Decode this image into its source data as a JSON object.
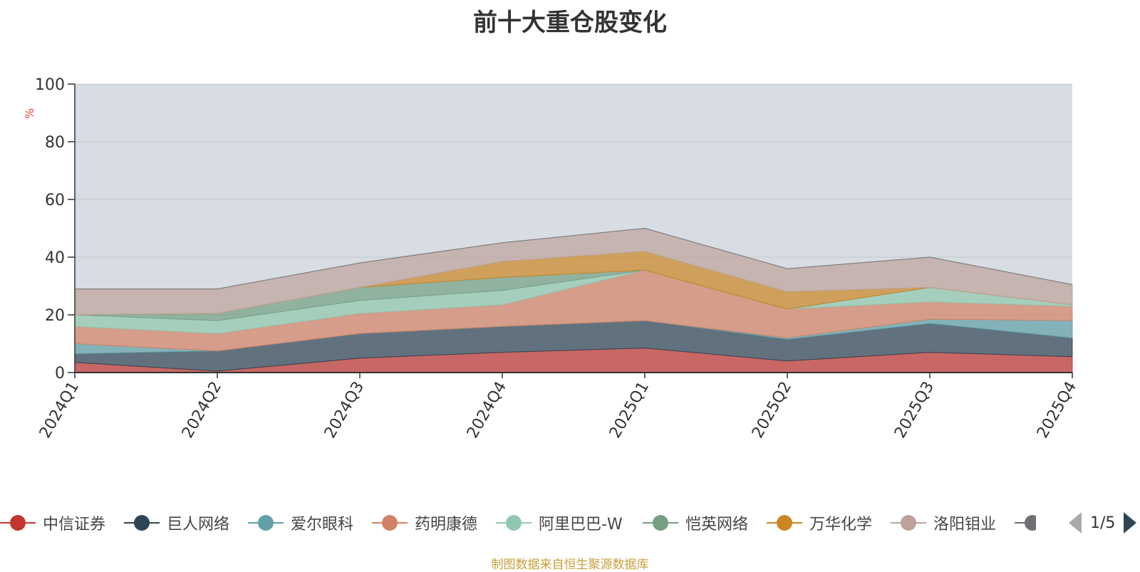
{
  "chart_data": {
    "type": "area",
    "title": "前十大重仓股变化",
    "ylabel": "%",
    "ylim": [
      0,
      100
    ],
    "yticks": [
      0,
      20,
      40,
      60,
      80,
      100
    ],
    "categories": [
      "2024Q1",
      "2024Q2",
      "2024Q3",
      "2024Q4",
      "2025Q1",
      "2025Q2",
      "2025Q3",
      "2025Q4"
    ],
    "grid": true,
    "series": [
      {
        "name": "中信证券",
        "color": "#c23531",
        "values": [
          3.5,
          0.5,
          5.0,
          7.0,
          8.5,
          4.0,
          7.0,
          5.5
        ]
      },
      {
        "name": "巨人网络",
        "color": "#2f4554",
        "values": [
          3.0,
          7.0,
          8.5,
          9.0,
          9.5,
          7.5,
          10.0,
          6.5
        ]
      },
      {
        "name": "爱尔眼科",
        "color": "#61a0a8",
        "values": [
          3.5,
          0.0,
          0.0,
          0.0,
          0.0,
          0.5,
          1.5,
          6.0
        ]
      },
      {
        "name": "药明康德",
        "color": "#d48265",
        "values": [
          6.0,
          6.0,
          7.0,
          7.5,
          17.5,
          10.0,
          6.0,
          5.0
        ]
      },
      {
        "name": "阿里巴巴-W",
        "color": "#91c7ae",
        "values": [
          4.0,
          4.5,
          4.5,
          5.0,
          0.0,
          0.0,
          5.0,
          0.5
        ]
      },
      {
        "name": "恺英网络",
        "color": "#749f83",
        "values": [
          0.0,
          2.5,
          4.5,
          4.5,
          0.0,
          0.0,
          0.0,
          0.0
        ]
      },
      {
        "name": "万华化学",
        "color": "#ca8622",
        "values": [
          0.0,
          0.0,
          0.0,
          5.5,
          6.5,
          6.0,
          0.0,
          0.0
        ]
      },
      {
        "name": "洛阳钼业",
        "color": "#bda29a",
        "values": [
          9.0,
          8.5,
          8.5,
          6.5,
          8.0,
          8.0,
          10.5,
          7.0
        ]
      },
      {
        "name": "",
        "color": "#6e7074",
        "values": [
          0.0,
          0.0,
          0.0,
          0.0,
          0.0,
          0.0,
          0.0,
          0.0
        ]
      }
    ]
  },
  "legend": {
    "items": [
      {
        "label": "中信证券",
        "color": "#c23531"
      },
      {
        "label": "巨人网络",
        "color": "#2f4554"
      },
      {
        "label": "爱尔眼科",
        "color": "#61a0a8"
      },
      {
        "label": "药明康德",
        "color": "#d48265"
      },
      {
        "label": "阿里巴巴-W",
        "color": "#91c7ae"
      },
      {
        "label": "恺英网络",
        "color": "#749f83"
      },
      {
        "label": "万华化学",
        "color": "#ca8622"
      },
      {
        "label": "洛阳钼业",
        "color": "#bda29a"
      },
      {
        "label": "",
        "color": "#6e7074"
      }
    ],
    "page_indicator": "1/5"
  },
  "source_note": "制图数据来自恒生聚源数据库"
}
